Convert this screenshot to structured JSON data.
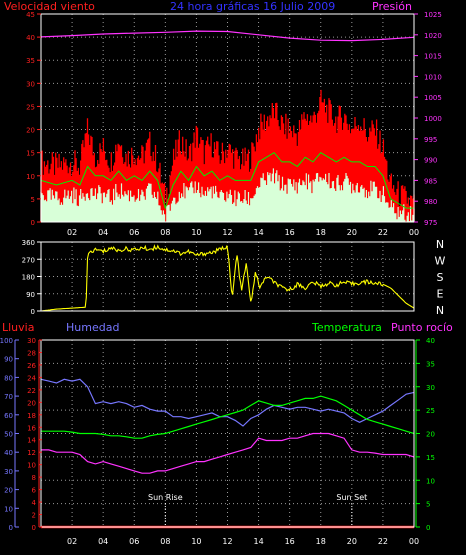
{
  "colors": {
    "background": "#000000",
    "grid": "#9a9a9a",
    "frame": "#ffffff",
    "speed_label": "#ff2020",
    "title": "#3333ff",
    "pressure": "#ff33ff",
    "gust": "#ff0000",
    "avg": "#00ee00",
    "min": "#d8ffd8",
    "direction": "#ffff00",
    "compass": "#ffffff",
    "rain": "#ff2020",
    "humidity": "#7777ff",
    "temperature": "#00ff00",
    "dewpoint": "#ff33ff",
    "sun": "#ffffff"
  },
  "chart_data": [
    {
      "type": "line",
      "title": "24 hora gráficas 16 Julio 2009",
      "left_label": "Velocidad viento",
      "right_label": "Presión",
      "x_tick_labels": [
        "02",
        "04",
        "06",
        "08",
        "10",
        "12",
        "14",
        "16",
        "18",
        "20",
        "22",
        "00"
      ],
      "y_left_ticks": [
        "0",
        "5",
        "10",
        "15",
        "20",
        "25",
        "30",
        "35",
        "40",
        "45"
      ],
      "y_left_range": [
        0,
        45
      ],
      "y_right_ticks": [
        "975",
        "980",
        "985",
        "990",
        "995",
        "1000",
        "1005",
        "1010",
        "1015",
        "1020",
        "1025"
      ],
      "y_right_range": [
        975,
        1025
      ],
      "grid": true,
      "series": [
        {
          "role": "gust",
          "x": [
            0,
            1,
            2,
            2.5,
            3,
            3.5,
            4,
            4.5,
            5,
            5.5,
            6,
            6.5,
            7,
            7.5,
            8,
            8.5,
            9,
            9.5,
            10,
            10.5,
            11,
            11.5,
            12,
            12.5,
            13,
            13.5,
            14,
            14.5,
            15,
            15.5,
            16,
            16.5,
            17,
            17.5,
            18,
            18.5,
            19,
            19.5,
            20,
            20.5,
            21,
            21.5,
            22,
            22.5,
            23,
            23.5,
            24
          ],
          "y": [
            13,
            12,
            13,
            12,
            20,
            14,
            16,
            13,
            18,
            14,
            15,
            14,
            17,
            13,
            5,
            13,
            18,
            14,
            19,
            15,
            17,
            14,
            16,
            14,
            13,
            14,
            20,
            22,
            24,
            21,
            20,
            19,
            23,
            22,
            26,
            24,
            22,
            23,
            20,
            22,
            19,
            20,
            16,
            8,
            6,
            5,
            4
          ]
        },
        {
          "role": "average",
          "x": [
            0,
            1,
            2,
            2.5,
            3,
            3.5,
            4,
            4.5,
            5,
            5.5,
            6,
            6.5,
            7,
            7.5,
            8,
            8.5,
            9,
            9.5,
            10,
            10.5,
            11,
            11.5,
            12,
            12.5,
            13,
            13.5,
            14,
            14.5,
            15,
            15.5,
            16,
            16.5,
            17,
            17.5,
            18,
            18.5,
            19,
            19.5,
            20,
            20.5,
            21,
            21.5,
            22,
            22.5,
            23,
            23.5,
            24
          ],
          "y": [
            9,
            8,
            9,
            8,
            12,
            10,
            10,
            9,
            11,
            9,
            10,
            9,
            11,
            9,
            3,
            8,
            11,
            9,
            12,
            10,
            11,
            9,
            10,
            9,
            9,
            9,
            13,
            14,
            15,
            13,
            13,
            12,
            14,
            13,
            15,
            14,
            13,
            14,
            13,
            13,
            12,
            12,
            10,
            5,
            4,
            3,
            3
          ]
        },
        {
          "role": "minimum",
          "x": [
            0,
            1,
            2,
            2.5,
            3,
            3.5,
            4,
            4.5,
            5,
            5.5,
            6,
            6.5,
            7,
            7.5,
            8,
            8.5,
            9,
            9.5,
            10,
            10.5,
            11,
            11.5,
            12,
            12.5,
            13,
            13.5,
            14,
            14.5,
            15,
            15.5,
            16,
            16.5,
            17,
            17.5,
            18,
            18.5,
            19,
            19.5,
            20,
            20.5,
            21,
            21.5,
            22,
            22.5,
            23,
            23.5,
            24
          ],
          "y": [
            6,
            5,
            6,
            5,
            7,
            6,
            6,
            5,
            7,
            6,
            6,
            5,
            7,
            5,
            1,
            5,
            7,
            6,
            8,
            6,
            7,
            5,
            6,
            5,
            5,
            5,
            8,
            9,
            10,
            8,
            8,
            8,
            9,
            8,
            10,
            9,
            8,
            9,
            8,
            8,
            7,
            7,
            6,
            3,
            2,
            2,
            2
          ]
        },
        {
          "role": "pressure",
          "x": [
            0,
            2,
            4,
            6,
            8,
            10,
            12,
            14,
            16,
            18,
            20,
            22,
            24
          ],
          "y": [
            1019.5,
            1019.8,
            1020.2,
            1020.4,
            1020.6,
            1020.9,
            1020.8,
            1020.0,
            1019.2,
            1018.7,
            1018.6,
            1018.9,
            1019.4
          ]
        }
      ]
    },
    {
      "type": "line",
      "y_left_ticks": [
        "0",
        "90",
        "180",
        "270",
        "360"
      ],
      "y_left_range": [
        0,
        360
      ],
      "compass_labels": [
        "N",
        "W",
        "S",
        "E",
        "N"
      ],
      "x_tick_labels": [],
      "grid": true,
      "series": [
        {
          "role": "direction",
          "x": [
            0,
            1,
            2,
            2.9,
            3.0,
            3.5,
            4,
            4.5,
            5,
            5.5,
            6,
            6.5,
            7,
            7.5,
            8,
            8.5,
            9,
            9.5,
            10,
            10.5,
            11,
            11.5,
            12,
            12.3,
            12.6,
            12.9,
            13.2,
            13.5,
            13.8,
            14.1,
            14.5,
            15,
            15.5,
            16,
            16.5,
            17,
            17.5,
            18,
            18.5,
            19,
            19.5,
            20,
            20.5,
            21,
            21.5,
            22,
            22.5,
            23,
            23.5,
            24
          ],
          "y": [
            0,
            10,
            15,
            20,
            300,
            320,
            310,
            330,
            315,
            325,
            318,
            330,
            322,
            335,
            320,
            315,
            300,
            310,
            290,
            300,
            305,
            320,
            340,
            60,
            300,
            100,
            250,
            40,
            200,
            120,
            180,
            150,
            120,
            110,
            140,
            120,
            150,
            130,
            145,
            135,
            150,
            140,
            148,
            152,
            145,
            140,
            120,
            80,
            40,
            15
          ]
        }
      ]
    },
    {
      "type": "line",
      "labels": {
        "rain": "Lluvia",
        "humidity": "Humedad",
        "temperature": "Temperatura",
        "dewpoint": "Punto rocío"
      },
      "sun_rise_label": "Sun Rise",
      "sun_set_label": "Sun Set",
      "sun_rise_x": 8.0,
      "sun_set_x": 20.0,
      "x_tick_labels": [
        "02",
        "04",
        "06",
        "08",
        "10",
        "12",
        "14",
        "16",
        "18",
        "20",
        "22",
        "00"
      ],
      "humidity_ticks": [
        "0",
        "10",
        "20",
        "30",
        "40",
        "50",
        "60",
        "70",
        "80",
        "90",
        "100"
      ],
      "humidity_range": [
        0,
        100
      ],
      "rain_ticks": [
        "0",
        "2",
        "4",
        "6",
        "8",
        "10",
        "12",
        "14",
        "16",
        "18",
        "20",
        "22",
        "24",
        "26",
        "28",
        "30"
      ],
      "rain_range": [
        0,
        30
      ],
      "temp_ticks": [
        "0",
        "5",
        "10",
        "15",
        "20",
        "25",
        "30",
        "35",
        "40"
      ],
      "temp_range": [
        0,
        40
      ],
      "grid": true,
      "series": [
        {
          "role": "humidity",
          "x": [
            0,
            0.5,
            1,
            1.5,
            2,
            2.5,
            3,
            3.5,
            4,
            4.5,
            5,
            5.5,
            6,
            6.5,
            7,
            7.5,
            8,
            8.5,
            9,
            9.5,
            10,
            10.5,
            11,
            11.5,
            12,
            12.5,
            13,
            13.5,
            14,
            14.5,
            15,
            15.5,
            16,
            16.5,
            17,
            17.5,
            18,
            18.5,
            19,
            19.5,
            20,
            20.5,
            21,
            21.5,
            22,
            22.5,
            23,
            23.5,
            24
          ],
          "y": [
            79,
            78,
            77,
            79,
            78,
            79,
            75,
            66,
            67,
            66,
            67,
            66,
            64,
            65,
            63,
            62,
            62,
            59,
            59,
            58,
            59,
            60,
            61,
            59,
            59,
            57,
            54,
            58,
            60,
            63,
            65,
            64,
            63,
            64,
            64,
            63,
            62,
            63,
            62,
            61,
            58,
            56,
            58,
            60,
            62,
            65,
            68,
            71,
            72
          ]
        },
        {
          "role": "temperature",
          "x": [
            0,
            0.5,
            1,
            1.5,
            2,
            2.5,
            3,
            3.5,
            4,
            4.5,
            5,
            5.5,
            6,
            6.5,
            7,
            7.5,
            8,
            8.5,
            9,
            9.5,
            10,
            10.5,
            11,
            11.5,
            12,
            12.5,
            13,
            13.5,
            14,
            14.5,
            15,
            15.5,
            16,
            16.5,
            17,
            17.5,
            18,
            18.5,
            19,
            19.5,
            20,
            20.5,
            21,
            21.5,
            22,
            22.5,
            23,
            23.5,
            24
          ],
          "y": [
            20.5,
            20.5,
            20.5,
            20.5,
            20.3,
            20.0,
            20.0,
            20.0,
            19.8,
            19.5,
            19.5,
            19.3,
            19.0,
            19.0,
            19.5,
            19.8,
            20.0,
            20.5,
            21.0,
            21.5,
            22.0,
            22.5,
            23.0,
            23.5,
            24.0,
            24.5,
            25.0,
            26.0,
            27.0,
            26.5,
            26.0,
            26.0,
            26.5,
            27.0,
            27.5,
            27.5,
            28.0,
            27.5,
            27.0,
            26.0,
            25.0,
            24.0,
            23.0,
            22.5,
            22.0,
            21.5,
            21.0,
            20.5,
            20.0
          ]
        },
        {
          "role": "dewpoint",
          "x": [
            0,
            0.5,
            1,
            1.5,
            2,
            2.5,
            3,
            3.5,
            4,
            4.5,
            5,
            5.5,
            6,
            6.5,
            7,
            7.5,
            8,
            8.5,
            9,
            9.5,
            10,
            10.5,
            11,
            11.5,
            12,
            12.5,
            13,
            13.5,
            14,
            14.5,
            15,
            15.5,
            16,
            16.5,
            17,
            17.5,
            18,
            18.5,
            19,
            19.5,
            20,
            20.5,
            21,
            21.5,
            22,
            22.5,
            23,
            23.5,
            24
          ],
          "y": [
            16.5,
            16.5,
            16.0,
            16.0,
            16.0,
            15.5,
            14.0,
            13.5,
            14.0,
            13.5,
            13.0,
            12.5,
            12.0,
            11.5,
            11.5,
            12.0,
            12.0,
            12.5,
            13.0,
            13.5,
            14.0,
            14.0,
            14.5,
            15.0,
            15.5,
            16.0,
            16.5,
            17.0,
            19.0,
            18.5,
            18.5,
            18.5,
            19.0,
            19.0,
            19.5,
            20.0,
            20.0,
            20.0,
            19.5,
            19.0,
            16.5,
            16.0,
            16.0,
            15.8,
            15.5,
            15.5,
            15.5,
            15.5,
            15.0
          ]
        },
        {
          "role": "rain",
          "x": [
            0,
            24
          ],
          "y": [
            0,
            0
          ]
        }
      ]
    }
  ]
}
